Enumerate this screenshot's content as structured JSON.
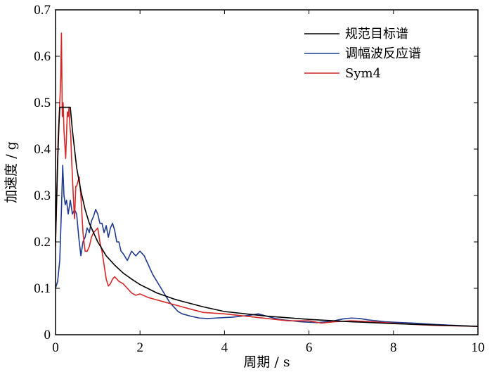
{
  "chart_data": {
    "type": "line",
    "xlabel": "周期 / s",
    "ylabel": "加速度 / g",
    "xlim": [
      0,
      10
    ],
    "ylim": [
      0,
      0.7
    ],
    "xticks": [
      0,
      2,
      4,
      6,
      8,
      10
    ],
    "yticks": [
      0,
      0.1,
      0.2,
      0.3,
      0.4,
      0.5,
      0.6,
      0.7
    ],
    "xtick_labels": [
      "0",
      "2",
      "4",
      "6",
      "8",
      "10"
    ],
    "ytick_labels": [
      "0",
      "0.1",
      "0.2",
      "0.3",
      "0.4",
      "0.5",
      "0.6",
      "0.7"
    ],
    "grid": false,
    "legend_position": "top-right",
    "series": [
      {
        "name": "规范目标谱",
        "color": "#000000",
        "x": [
          0,
          0.02,
          0.05,
          0.08,
          0.1,
          0.12,
          0.35,
          0.4,
          0.5,
          0.6,
          0.7,
          0.8,
          1.0,
          1.2,
          1.4,
          1.6,
          1.8,
          2.0,
          2.4,
          2.8,
          3.0,
          3.5,
          4.0,
          5.0,
          6.0,
          7.0,
          8.0,
          9.0,
          10.0
        ],
        "y": [
          0.2,
          0.27,
          0.37,
          0.45,
          0.49,
          0.49,
          0.49,
          0.44,
          0.36,
          0.31,
          0.27,
          0.24,
          0.2,
          0.17,
          0.15,
          0.133,
          0.12,
          0.108,
          0.09,
          0.077,
          0.072,
          0.06,
          0.05,
          0.04,
          0.033,
          0.028,
          0.024,
          0.021,
          0.018
        ]
      },
      {
        "name": "调幅波反应谱",
        "color": "#1f3a8f",
        "x": [
          0,
          0.05,
          0.1,
          0.14,
          0.17,
          0.2,
          0.23,
          0.26,
          0.3,
          0.35,
          0.4,
          0.45,
          0.5,
          0.55,
          0.6,
          0.65,
          0.7,
          0.75,
          0.8,
          0.85,
          0.9,
          0.95,
          1.0,
          1.05,
          1.1,
          1.15,
          1.2,
          1.25,
          1.3,
          1.35,
          1.4,
          1.45,
          1.5,
          1.55,
          1.6,
          1.7,
          1.8,
          1.9,
          2.0,
          2.1,
          2.2,
          2.3,
          2.4,
          2.5,
          2.6,
          2.7,
          2.8,
          2.9,
          3.0,
          3.2,
          3.4,
          3.6,
          3.8,
          4.0,
          4.2,
          4.4,
          4.6,
          4.8,
          5.0,
          5.2,
          5.4,
          5.6,
          5.8,
          6.0,
          6.2,
          6.4,
          6.6,
          6.8,
          7.0,
          7.2,
          7.4,
          7.6,
          7.8,
          8.0,
          8.5,
          9.0,
          9.5,
          10.0
        ],
        "y": [
          0.1,
          0.115,
          0.16,
          0.27,
          0.365,
          0.3,
          0.28,
          0.29,
          0.26,
          0.29,
          0.26,
          0.27,
          0.26,
          0.21,
          0.17,
          0.2,
          0.21,
          0.23,
          0.22,
          0.245,
          0.255,
          0.27,
          0.26,
          0.24,
          0.24,
          0.22,
          0.235,
          0.21,
          0.23,
          0.24,
          0.225,
          0.2,
          0.2,
          0.18,
          0.175,
          0.16,
          0.18,
          0.17,
          0.18,
          0.17,
          0.15,
          0.13,
          0.115,
          0.1,
          0.085,
          0.07,
          0.06,
          0.05,
          0.045,
          0.04,
          0.036,
          0.035,
          0.036,
          0.037,
          0.038,
          0.04,
          0.042,
          0.045,
          0.04,
          0.035,
          0.032,
          0.03,
          0.028,
          0.027,
          0.026,
          0.028,
          0.03,
          0.034,
          0.036,
          0.035,
          0.032,
          0.03,
          0.028,
          0.027,
          0.025,
          0.022,
          0.02,
          0.018
        ]
      },
      {
        "name": "Sym4",
        "color": "#d62728",
        "x": [
          0,
          0.03,
          0.06,
          0.09,
          0.12,
          0.14,
          0.16,
          0.18,
          0.2,
          0.22,
          0.24,
          0.26,
          0.28,
          0.3,
          0.32,
          0.34,
          0.36,
          0.38,
          0.4,
          0.42,
          0.45,
          0.48,
          0.5,
          0.53,
          0.56,
          0.6,
          0.65,
          0.7,
          0.75,
          0.8,
          0.85,
          0.9,
          0.95,
          1.0,
          1.05,
          1.1,
          1.15,
          1.2,
          1.25,
          1.3,
          1.35,
          1.4,
          1.5,
          1.6,
          1.7,
          1.8,
          1.9,
          2.0,
          2.2,
          2.4,
          2.6,
          2.8,
          3.0,
          3.2,
          3.5,
          4.0,
          4.5,
          5.0,
          5.5,
          6.0,
          6.3,
          6.6,
          7.0,
          7.5,
          8.0,
          8.5,
          9.0,
          9.5,
          10.0
        ],
        "y": [
          0.19,
          0.3,
          0.42,
          0.48,
          0.54,
          0.65,
          0.47,
          0.5,
          0.44,
          0.41,
          0.38,
          0.43,
          0.48,
          0.47,
          0.49,
          0.45,
          0.43,
          0.38,
          0.34,
          0.3,
          0.25,
          0.32,
          0.32,
          0.33,
          0.34,
          0.3,
          0.22,
          0.18,
          0.18,
          0.19,
          0.21,
          0.22,
          0.225,
          0.23,
          0.2,
          0.18,
          0.15,
          0.12,
          0.105,
          0.11,
          0.12,
          0.125,
          0.115,
          0.11,
          0.1,
          0.09,
          0.085,
          0.088,
          0.08,
          0.075,
          0.07,
          0.065,
          0.06,
          0.055,
          0.048,
          0.045,
          0.04,
          0.035,
          0.03,
          0.03,
          0.025,
          0.028,
          0.03,
          0.028,
          0.025,
          0.022,
          0.02,
          0.019,
          0.018
        ]
      }
    ]
  }
}
